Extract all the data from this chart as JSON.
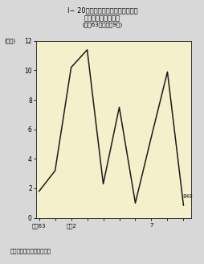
{
  "title_line1": "I− 20図　公職選挙法違反の検察庁",
  "title_line2": "新規受理人員の推移",
  "title_line3": "(昭和63年～平戈9年)",
  "ylabel": "(千人)",
  "note": "注　検察統計年報による。",
  "x_label_texts": [
    "昭和63",
    "平戉2",
    "7"
  ],
  "years": [
    0,
    1,
    2,
    3,
    4,
    5,
    6,
    7,
    8,
    9
  ],
  "values": [
    1.8,
    3.2,
    10.2,
    11.4,
    2.3,
    7.5,
    1.0,
    5.5,
    9.9,
    0.848
  ],
  "last_label": "848",
  "ylim": [
    0,
    12
  ],
  "yticks": [
    0,
    2,
    4,
    6,
    8,
    10,
    12
  ],
  "line_color": "#1a1a1a",
  "plot_bg": "#f5f0cc",
  "fig_bg": "#d8d8d8"
}
